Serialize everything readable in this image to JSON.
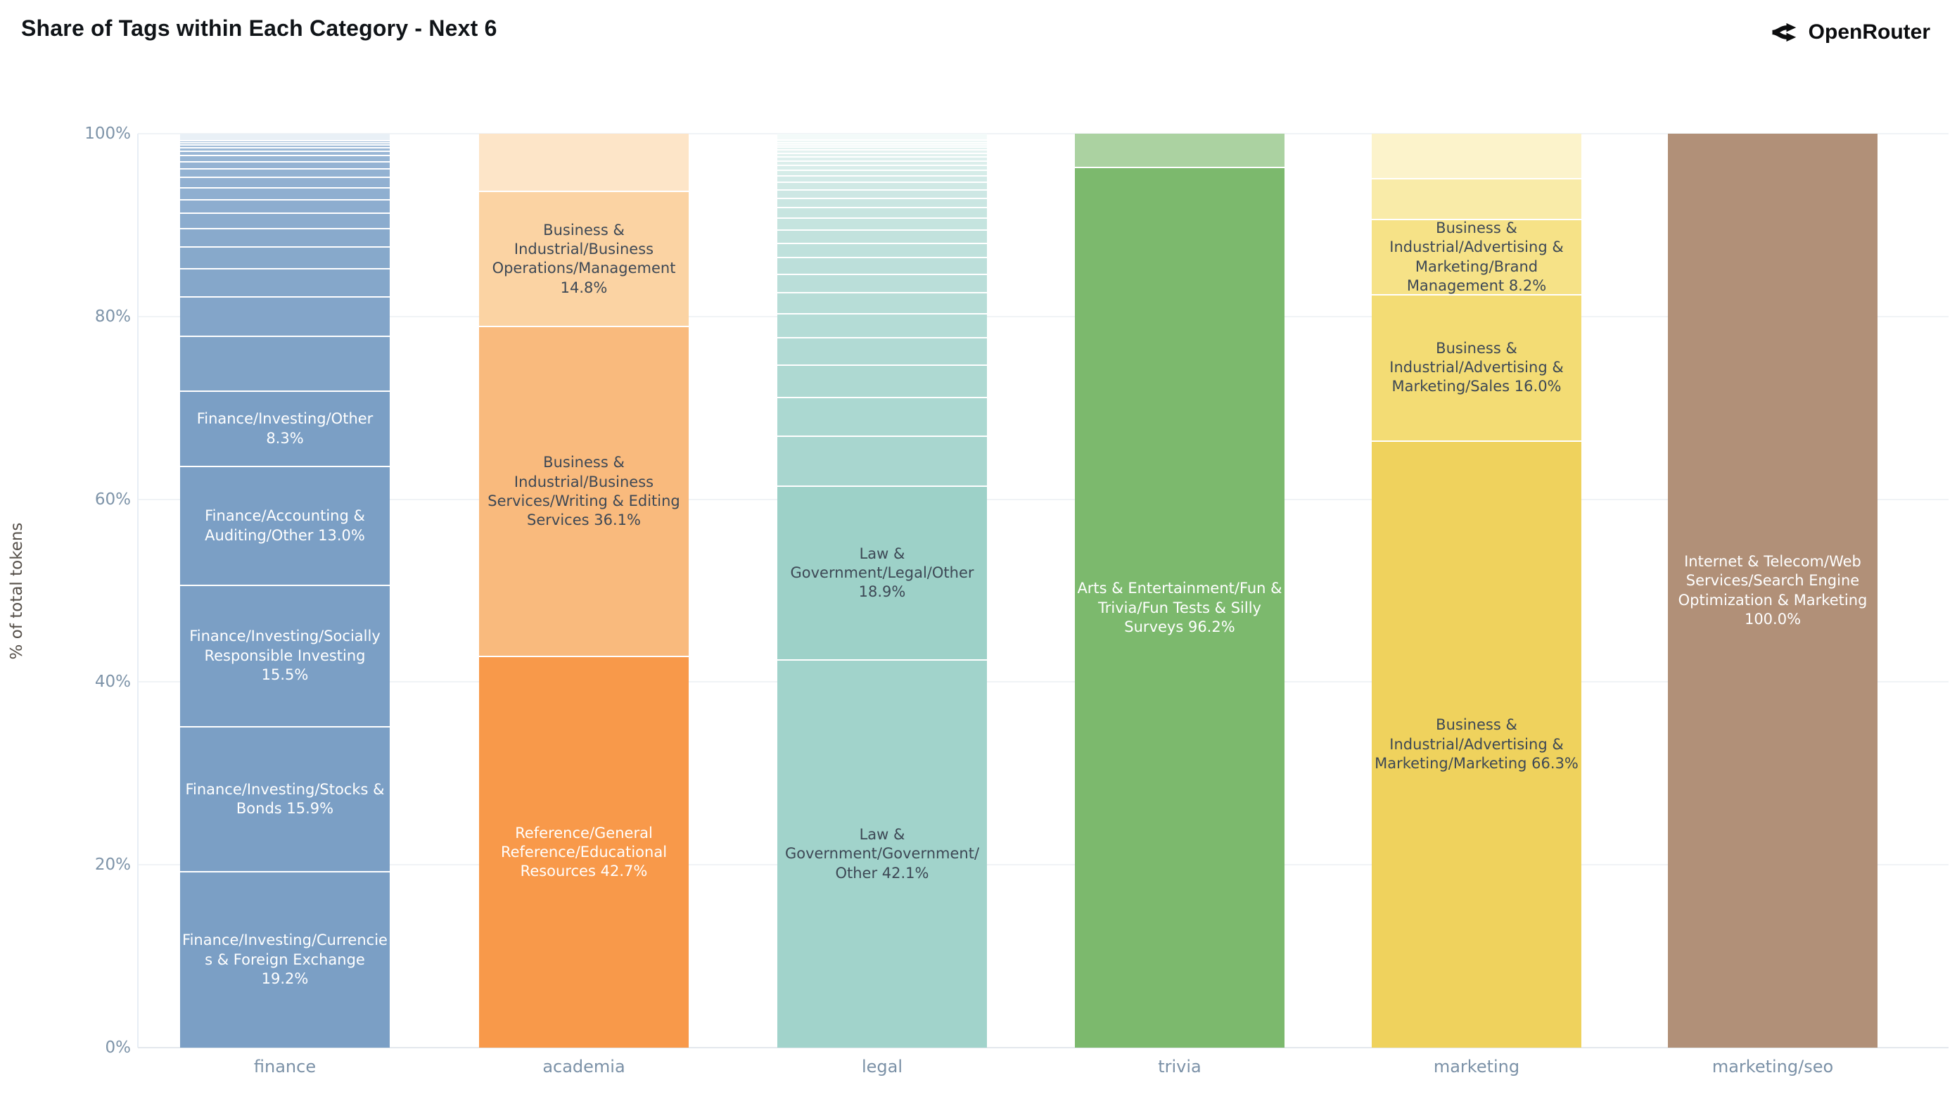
{
  "title": "Share of Tags within Each Category - Next 6",
  "brand": {
    "name": "OpenRouter",
    "icon": "openrouter-chevron-icon"
  },
  "y_axis": {
    "title": "% of total tokens",
    "ticks": [
      "0%",
      "20%",
      "40%",
      "60%",
      "80%",
      "100%"
    ]
  },
  "chart_data": {
    "type": "bar",
    "stacked": true,
    "orientation": "vertical",
    "unit": "%",
    "ylim": [
      0,
      100
    ],
    "grid": true,
    "legend": false,
    "title": "Share of Tags within Each Category - Next 6",
    "xlabel": "",
    "ylabel": "% of total tokens",
    "categories": [
      "finance",
      "academia",
      "legal",
      "trivia",
      "marketing",
      "marketing/seo"
    ],
    "bars": [
      {
        "category": "finance",
        "segments": [
          {
            "value": 19.2,
            "label": "Finance/Investing/Currencies & Foreign Exchange 19.2%",
            "color": "#7b9fc5",
            "label_color": "#ffffff"
          },
          {
            "value": 15.9,
            "label": "Finance/Investing/Stocks & Bonds 15.9%",
            "color": "#7b9fc5",
            "label_color": "#ffffff"
          },
          {
            "value": 15.5,
            "label": "Finance/Investing/Socially Responsible Investing 15.5%",
            "color": "#7b9fc5",
            "label_color": "#ffffff"
          },
          {
            "value": 13.0,
            "label": "Finance/Accounting & Auditing/Other 13.0%",
            "color": "#7b9fc5",
            "label_color": "#ffffff"
          },
          {
            "value": 8.3,
            "label": "Finance/Investing/Other 8.3%",
            "color": "#7b9fc5",
            "label_color": "#ffffff"
          },
          {
            "value": 6.0,
            "color": "#80a3c7"
          },
          {
            "value": 4.3,
            "color": "#83a5c9"
          },
          {
            "value": 3.1,
            "color": "#85a7ca"
          },
          {
            "value": 2.4,
            "color": "#87a9cb"
          },
          {
            "value": 2.0,
            "color": "#89aacc"
          },
          {
            "value": 1.7,
            "color": "#8bacce"
          },
          {
            "value": 1.5,
            "color": "#8dadcf"
          },
          {
            "value": 1.3,
            "color": "#8fafd0"
          },
          {
            "value": 1.1,
            "color": "#91b0d1"
          },
          {
            "value": 0.95,
            "color": "#93b2d2"
          },
          {
            "value": 0.8,
            "color": "#95b3d3"
          },
          {
            "value": 0.65,
            "color": "#97b5d4"
          },
          {
            "value": 0.5,
            "color": "#99b6d5"
          },
          {
            "value": 0.4,
            "color": "#9bb8d6"
          },
          {
            "value": 0.3,
            "color": "#9db9d7"
          },
          {
            "value": 0.25,
            "color": "#9fbbd8"
          },
          {
            "value": 0.2,
            "color": "#a1bcd9"
          },
          {
            "value": 0.85,
            "color": "#e9f0f6"
          }
        ]
      },
      {
        "category": "academia",
        "segments": [
          {
            "value": 42.7,
            "label": "Reference/General Reference/Educational Resources 42.7%",
            "color": "#f8994a",
            "label_color": "#ffffff"
          },
          {
            "value": 36.1,
            "label": "Business & Industrial/Business Services/Writing & Editing Services 36.1%",
            "color": "#f9ba7d",
            "label_color": "#3d4855"
          },
          {
            "value": 14.8,
            "label": "Business & Industrial/Business Operations/Management 14.8%",
            "color": "#fbd3a3",
            "label_color": "#3d4855"
          },
          {
            "value": 6.4,
            "color": "#fde5c8"
          }
        ]
      },
      {
        "category": "legal",
        "segments": [
          {
            "value": 42.1,
            "label": "Law & Government/Government/Other 42.1%",
            "color": "#a1d3cb",
            "label_color": "#3d4855"
          },
          {
            "value": 18.9,
            "label": "Law & Government/Legal/Other 18.9%",
            "color": "#9dd1c8",
            "label_color": "#3d4855"
          },
          {
            "value": 5.5,
            "color": "#a8d6cf"
          },
          {
            "value": 4.2,
            "color": "#abd8d1"
          },
          {
            "value": 3.5,
            "color": "#aed9d2"
          },
          {
            "value": 3.0,
            "color": "#b1dad4"
          },
          {
            "value": 2.6,
            "color": "#b4dcd6"
          },
          {
            "value": 2.3,
            "color": "#b7ddd7"
          },
          {
            "value": 2.0,
            "color": "#baded9"
          },
          {
            "value": 1.8,
            "color": "#bcdfda"
          },
          {
            "value": 1.6,
            "color": "#bfe1dc"
          },
          {
            "value": 1.45,
            "color": "#c2e2dd"
          },
          {
            "value": 1.3,
            "color": "#c5e4df"
          },
          {
            "value": 1.15,
            "color": "#c7e5e0"
          },
          {
            "value": 1.0,
            "color": "#cae6e2"
          },
          {
            "value": 0.9,
            "color": "#cde7e4"
          },
          {
            "value": 0.8,
            "color": "#d0e9e5"
          },
          {
            "value": 0.7,
            "color": "#d2eae7"
          },
          {
            "value": 0.6,
            "color": "#d5ece8"
          },
          {
            "value": 0.55,
            "color": "#d8edea"
          },
          {
            "value": 0.5,
            "color": "#dbeeeb"
          },
          {
            "value": 0.45,
            "color": "#ddefed"
          },
          {
            "value": 0.4,
            "color": "#e0f1ee"
          },
          {
            "value": 0.35,
            "color": "#e3f2f0"
          },
          {
            "value": 0.3,
            "color": "#e5f3f1"
          },
          {
            "value": 0.25,
            "color": "#e8f4f3"
          },
          {
            "value": 0.25,
            "color": "#ebf6f4"
          },
          {
            "value": 0.25,
            "color": "#eef7f6"
          },
          {
            "value": 0.8,
            "color": "#f3faf9"
          }
        ]
      },
      {
        "category": "trivia",
        "segments": [
          {
            "value": 96.2,
            "label": "Arts & Entertainment/Fun & Trivia/Fun Tests & Silly Surveys 96.2%",
            "color": "#7cb96d",
            "label_color": "#ffffff"
          },
          {
            "value": 3.8,
            "color": "#abd2a1"
          }
        ]
      },
      {
        "category": "marketing",
        "segments": [
          {
            "value": 66.3,
            "label": "Business & Industrial/Advertising & Marketing/Marketing 66.3%",
            "color": "#efd25d",
            "label_color": "#3d4855"
          },
          {
            "value": 16.0,
            "label": "Business & Industrial/Advertising & Marketing/Sales 16.0%",
            "color": "#f3dc74",
            "label_color": "#3d4855"
          },
          {
            "value": 8.2,
            "label": "Business & Industrial/Advertising & Marketing/Brand Management 8.2%",
            "color": "#f6e287",
            "label_color": "#3d4855"
          },
          {
            "value": 4.5,
            "color": "#f9eba8"
          },
          {
            "value": 5.0,
            "color": "#fcf3cb"
          }
        ]
      },
      {
        "category": "marketing/seo",
        "segments": [
          {
            "value": 100.0,
            "label": "Internet & Telecom/Web Services/Search Engine Optimization & Marketing 100.0%",
            "color": "#b19078",
            "label_color": "#ffffff"
          }
        ]
      }
    ]
  }
}
